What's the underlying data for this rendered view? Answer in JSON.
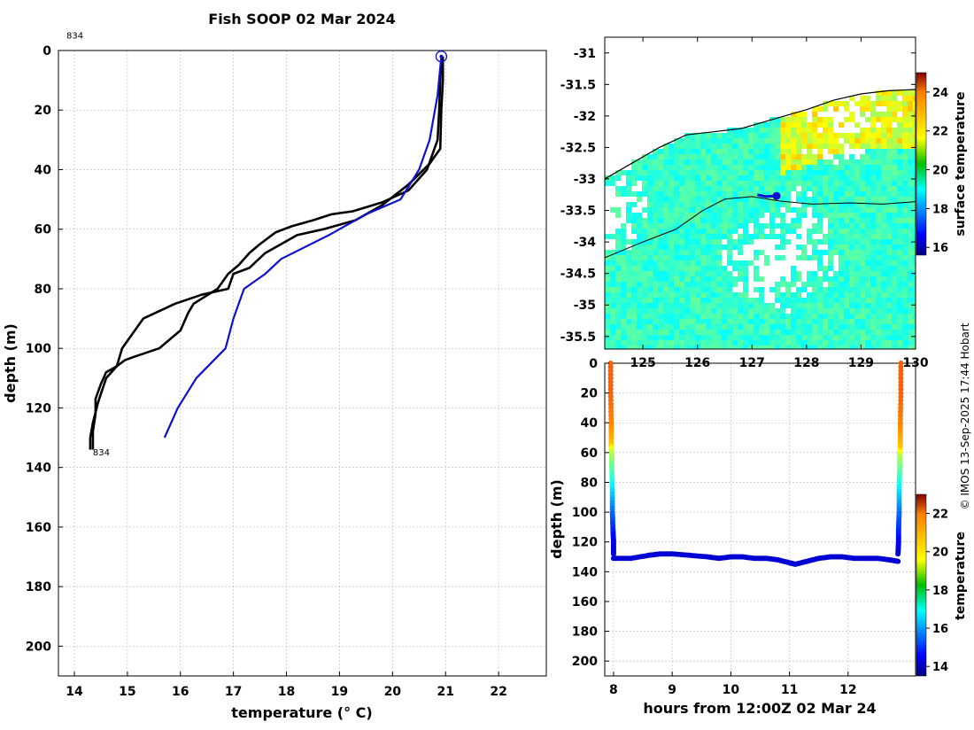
{
  "figure": {
    "title": "Fish SOOP 02 Mar 2024",
    "credit": "© IMOS 13-Sep-2025 17:44 Hobart"
  },
  "colors": {
    "profile_black": "#000000",
    "profile_blue": "#1010d0",
    "marker": "#1010d0",
    "grid": "#b8b8b8"
  },
  "chart_data": [
    {
      "id": "profile",
      "type": "line",
      "xlabel": "temperature (° C)",
      "ylabel": "depth (m)",
      "xlim": [
        13.7,
        22.9
      ],
      "ylim": [
        210,
        0
      ],
      "xticks": [
        14,
        15,
        16,
        17,
        18,
        19,
        20,
        21,
        22
      ],
      "yticks": [
        0,
        20,
        40,
        60,
        80,
        100,
        120,
        140,
        160,
        180,
        200
      ],
      "grid": true,
      "annotations": [
        {
          "text": "834",
          "x": 13.85,
          "y": -4
        },
        {
          "text": "834",
          "x": 14.35,
          "y": 136
        }
      ],
      "series": [
        {
          "name": "descent",
          "color": "#000000",
          "x": [
            20.95,
            20.95,
            20.92,
            20.9,
            20.7,
            20.3,
            19.8,
            19.3,
            18.7,
            18.2,
            17.8,
            17.6,
            17.3,
            17.0,
            16.9,
            16.4,
            15.9,
            15.3,
            14.9,
            14.8,
            14.6,
            14.45,
            14.35,
            14.3,
            14.3
          ],
          "y": [
            2,
            10,
            20,
            33,
            38,
            45,
            52,
            57,
            60,
            62,
            66,
            68,
            73,
            75,
            80,
            82,
            85,
            90,
            100,
            106,
            110,
            118,
            125,
            130,
            134
          ]
        },
        {
          "name": "ascent",
          "color": "#000000",
          "x": [
            14.35,
            14.35,
            14.4,
            14.4,
            14.5,
            14.6,
            14.8,
            14.95,
            15.1,
            15.6,
            16.0,
            16.15,
            16.25,
            16.7,
            16.9,
            17.1,
            17.3,
            17.5,
            17.8,
            18.1,
            18.5,
            18.85,
            19.25,
            19.8,
            20.3,
            20.65,
            20.85,
            20.88,
            20.9,
            20.92
          ],
          "y": [
            134,
            128,
            122,
            117,
            112,
            108,
            106,
            104,
            103,
            100,
            94,
            88,
            85,
            80,
            75,
            72,
            68,
            65,
            61,
            59,
            57,
            55,
            54,
            51,
            47,
            40,
            30,
            20,
            10,
            3
          ]
        },
        {
          "name": "model",
          "color": "#1010d0",
          "x": [
            20.92,
            20.85,
            20.7,
            20.5,
            20.15,
            19.5,
            18.8,
            17.9,
            17.6,
            17.2,
            17.0,
            16.85,
            16.3,
            15.95,
            15.7
          ],
          "y": [
            2,
            15,
            30,
            40,
            50,
            55,
            62,
            70,
            75,
            80,
            90,
            100,
            110,
            120,
            130
          ]
        }
      ],
      "marker": {
        "x": 20.92,
        "y": 2,
        "label": ""
      }
    },
    {
      "id": "sst_map",
      "type": "heatmap",
      "xlabel": "",
      "ylabel": "",
      "xlim": [
        124.3,
        130.0
      ],
      "ylim": [
        -35.7,
        -30.75
      ],
      "xticks": [
        125,
        126,
        127,
        128,
        129,
        130
      ],
      "yticks": [
        -31,
        -31.5,
        -32,
        -32.5,
        -33,
        -33.5,
        -34,
        -34.5,
        -35,
        -35.5
      ],
      "ytick_labels": [
        "-31",
        "-31.5",
        "-32",
        "-32.5",
        "-33",
        "-33.5",
        "-34",
        "-34.5",
        "-35",
        "-35.5"
      ],
      "colorbar": {
        "label": "surface temperature",
        "range": [
          15.6,
          25.0
        ],
        "ticks": [
          16,
          18,
          20,
          22,
          24
        ]
      },
      "coastline": {
        "lon": [
          124.3,
          124.8,
          125.3,
          125.8,
          126.3,
          126.8,
          127.4,
          128.0,
          128.5,
          129.0,
          129.5,
          130.0
        ],
        "lat": [
          -33.0,
          -32.75,
          -32.5,
          -32.3,
          -32.25,
          -32.2,
          -32.05,
          -31.9,
          -31.75,
          -31.65,
          -31.6,
          -31.58
        ]
      },
      "track": {
        "lon": [
          124.3,
          125.0,
          125.6,
          126.1,
          126.5,
          127.0,
          127.5,
          128.1,
          128.8,
          129.4,
          130.0
        ],
        "lat": [
          -34.25,
          -34.0,
          -33.8,
          -33.5,
          -33.32,
          -33.28,
          -33.35,
          -33.4,
          -33.38,
          -33.4,
          -33.36
        ]
      },
      "vessel": {
        "lon": [
          127.1,
          127.25,
          127.4,
          127.45
        ],
        "lat": [
          -33.25,
          -33.28,
          -33.27,
          -33.27
        ]
      },
      "vessel_position": {
        "lon": 127.45,
        "lat": -33.27
      }
    },
    {
      "id": "timeseries",
      "type": "scatter",
      "xlabel": "hours from 12:00Z 02 Mar 24",
      "ylabel": "depth (m)",
      "xlim": [
        7.85,
        13.15
      ],
      "ylim": [
        210,
        0
      ],
      "xticks": [
        8,
        9,
        10,
        11,
        12
      ],
      "yticks": [
        0,
        20,
        40,
        60,
        80,
        100,
        120,
        140,
        160,
        180,
        200
      ],
      "colorbar": {
        "label": "temperature",
        "range": [
          13.5,
          23.0
        ],
        "ticks": [
          14,
          16,
          18,
          20,
          22
        ]
      },
      "segments": [
        {
          "name": "descent",
          "hours": [
            7.95,
            7.95,
            7.96,
            7.96,
            7.97,
            7.97,
            7.98,
            7.98,
            7.99,
            8.0,
            8.0
          ],
          "depth": [
            0,
            20,
            40,
            55,
            60,
            70,
            85,
            100,
            112,
            120,
            128
          ],
          "temperature": [
            20.95,
            20.9,
            20.6,
            20.0,
            18.8,
            18.0,
            16.8,
            15.7,
            15.0,
            14.5,
            14.3
          ]
        },
        {
          "name": "bottom",
          "hours": [
            8.0,
            8.3,
            8.6,
            8.8,
            9.0,
            9.3,
            9.6,
            9.8,
            10.0,
            10.2,
            10.4,
            10.6,
            10.8,
            11.0,
            11.1,
            11.3,
            11.5,
            11.7,
            11.9,
            12.1,
            12.3,
            12.5,
            12.7,
            12.85
          ],
          "depth": [
            131,
            131,
            129,
            128,
            128,
            129,
            130,
            131,
            130,
            130,
            131,
            131,
            132,
            134,
            135,
            133,
            131,
            130,
            130,
            131,
            131,
            131,
            132,
            133
          ],
          "temperature": [
            14.3,
            14.3,
            14.3,
            14.3,
            14.3,
            14.3,
            14.3,
            14.3,
            14.3,
            14.3,
            14.3,
            14.3,
            14.3,
            14.3,
            14.3,
            14.3,
            14.3,
            14.3,
            14.3,
            14.3,
            14.3,
            14.3,
            14.3,
            14.3
          ]
        },
        {
          "name": "ascent",
          "hours": [
            12.85,
            12.86,
            12.86,
            12.87,
            12.87,
            12.88,
            12.88,
            12.89,
            12.89,
            12.9,
            12.9
          ],
          "depth": [
            128,
            120,
            112,
            100,
            85,
            70,
            60,
            55,
            40,
            20,
            0
          ],
          "temperature": [
            14.3,
            14.5,
            15.0,
            15.7,
            16.8,
            18.0,
            18.8,
            20.0,
            20.6,
            20.9,
            20.95
          ]
        }
      ]
    }
  ]
}
